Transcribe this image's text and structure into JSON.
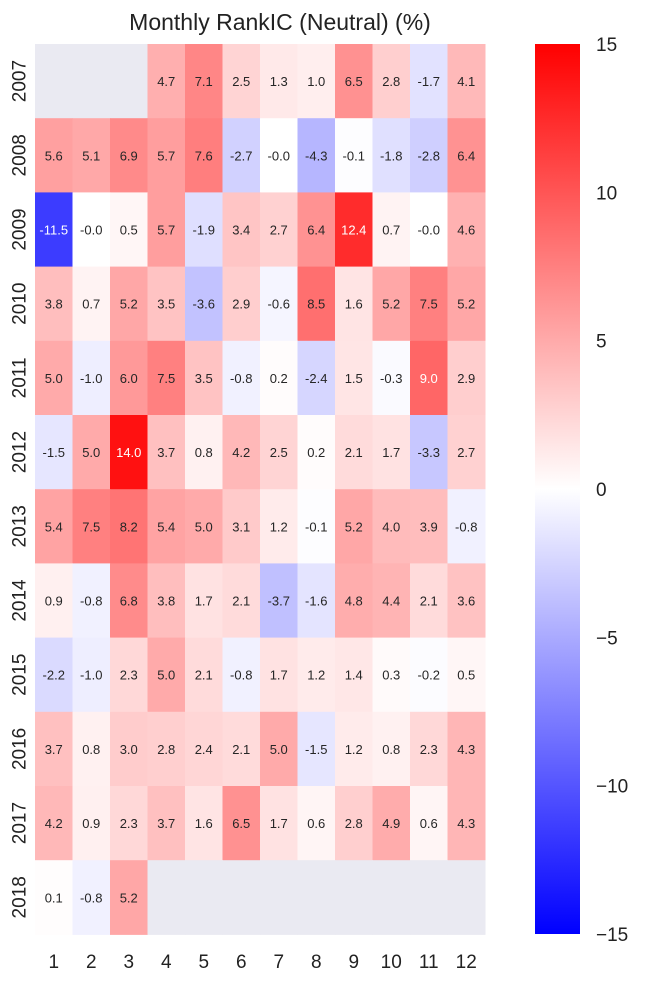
{
  "chart_data": {
    "type": "heatmap",
    "title": "Monthly RankIC (Neutral) (%)",
    "xlabel": "",
    "ylabel": "",
    "x_categories": [
      "1",
      "2",
      "3",
      "4",
      "5",
      "6",
      "7",
      "8",
      "9",
      "10",
      "11",
      "12"
    ],
    "y_categories": [
      "2007",
      "2008",
      "2009",
      "2010",
      "2011",
      "2012",
      "2013",
      "2014",
      "2015",
      "2016",
      "2017",
      "2018"
    ],
    "values": [
      [
        null,
        null,
        null,
        4.7,
        7.1,
        2.5,
        1.3,
        1.0,
        6.5,
        2.8,
        -1.7,
        4.1
      ],
      [
        5.6,
        5.1,
        6.9,
        5.7,
        7.6,
        -2.7,
        -0.0,
        -4.3,
        -0.1,
        -1.8,
        -2.8,
        6.4
      ],
      [
        -11.5,
        -0.0,
        0.5,
        5.7,
        -1.9,
        3.4,
        2.7,
        6.4,
        12.4,
        0.7,
        -0.0,
        4.6
      ],
      [
        3.8,
        0.7,
        5.2,
        3.5,
        -3.6,
        2.9,
        -0.6,
        8.5,
        1.6,
        5.2,
        7.5,
        5.2
      ],
      [
        5.0,
        -1.0,
        6.0,
        7.5,
        3.5,
        -0.8,
        0.2,
        -2.4,
        1.5,
        -0.3,
        9.0,
        2.9
      ],
      [
        -1.5,
        5.0,
        14.0,
        3.7,
        0.8,
        4.2,
        2.5,
        0.2,
        2.1,
        1.7,
        -3.3,
        2.7
      ],
      [
        5.4,
        7.5,
        8.2,
        5.4,
        5.0,
        3.1,
        1.2,
        -0.1,
        5.2,
        4.0,
        3.9,
        -0.8
      ],
      [
        0.9,
        -0.8,
        6.8,
        3.8,
        1.7,
        2.1,
        -3.7,
        -1.6,
        4.8,
        4.4,
        2.1,
        3.6
      ],
      [
        -2.2,
        -1.0,
        2.3,
        5.0,
        2.1,
        -0.8,
        1.7,
        1.2,
        1.4,
        0.3,
        -0.2,
        0.5
      ],
      [
        3.7,
        0.8,
        3.0,
        2.8,
        2.4,
        2.1,
        5.0,
        -1.5,
        1.2,
        0.8,
        2.3,
        4.3
      ],
      [
        4.2,
        0.9,
        2.3,
        3.7,
        1.6,
        6.5,
        1.7,
        0.6,
        2.8,
        4.9,
        0.6,
        4.3
      ],
      [
        0.1,
        -0.8,
        5.2,
        null,
        null,
        null,
        null,
        null,
        null,
        null,
        null,
        null
      ]
    ],
    "colorscale": "bwr",
    "vmin": -15,
    "vmax": 15,
    "colorbar_ticks": [
      "15",
      "10",
      "5",
      "0",
      "−5",
      "−10",
      "−15"
    ],
    "missing_color": "#eaeaf2",
    "grid": false,
    "legend": "colorbar-right"
  }
}
